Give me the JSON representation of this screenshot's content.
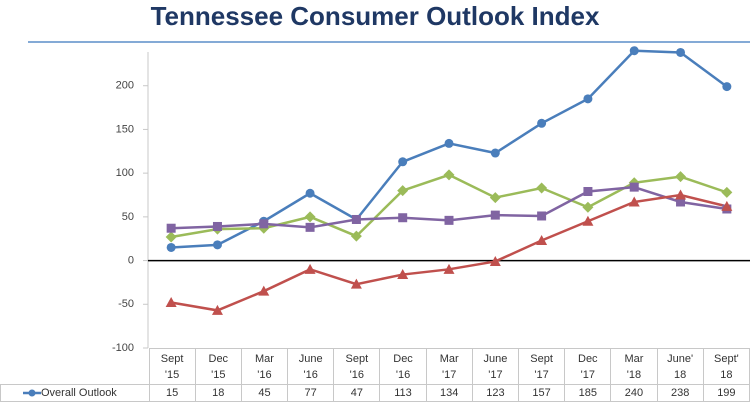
{
  "chart_data": {
    "type": "line",
    "title": "Tennessee Consumer Outlook Index",
    "categories": [
      "Sept\n'15",
      "Dec\n'15",
      "Mar\n'16",
      "June\n'16",
      "Sept\n'16",
      "Dec\n'16",
      "Mar\n'17",
      "June\n'17",
      "Sept\n'17",
      "Dec\n'17",
      "Mar\n'18",
      "June'\n18",
      "Sept'\n18"
    ],
    "series": [
      {
        "name": "Overall Outlook",
        "color": "#4a7ebb",
        "marker": "circle",
        "values": [
          15,
          18,
          45,
          77,
          47,
          113,
          134,
          123,
          157,
          185,
          240,
          238,
          199
        ]
      },
      {
        "color": "#9bbb59",
        "marker": "diamond",
        "values": [
          27,
          36,
          37,
          50,
          28,
          80,
          98,
          72,
          83,
          61,
          89,
          96,
          78
        ]
      },
      {
        "color": "#8064a2",
        "marker": "square",
        "values": [
          37,
          39,
          42,
          38,
          47,
          49,
          46,
          52,
          51,
          79,
          84,
          67,
          59
        ]
      },
      {
        "color": "#c0504d",
        "marker": "triangle",
        "values": [
          -48,
          -57,
          -35,
          -10,
          -27,
          -16,
          -10,
          -1,
          23,
          45,
          67,
          75,
          62
        ]
      }
    ],
    "ylim": [
      -100,
      250
    ],
    "yticks": [
      -100,
      -50,
      0,
      50,
      100,
      150,
      200
    ],
    "grid": false
  }
}
